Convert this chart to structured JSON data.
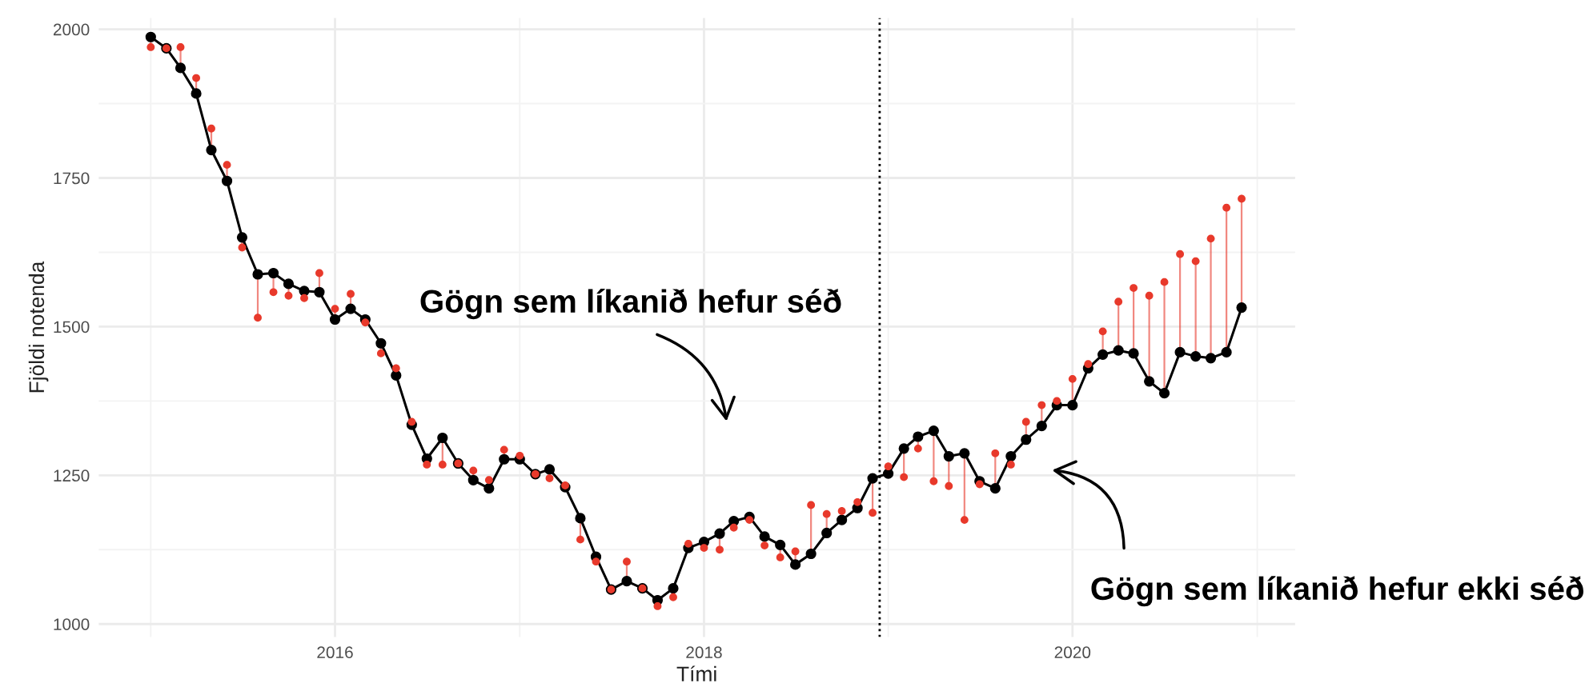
{
  "chart_data": {
    "type": "line",
    "xlabel": "Tími",
    "ylabel": "Fjöldi notenda",
    "x": [
      "2015-01",
      "2015-02",
      "2015-03",
      "2015-04",
      "2015-05",
      "2015-06",
      "2015-07",
      "2015-08",
      "2015-09",
      "2015-10",
      "2015-11",
      "2015-12",
      "2016-01",
      "2016-02",
      "2016-03",
      "2016-04",
      "2016-05",
      "2016-06",
      "2016-07",
      "2016-08",
      "2016-09",
      "2016-10",
      "2016-11",
      "2016-12",
      "2017-01",
      "2017-02",
      "2017-03",
      "2017-04",
      "2017-05",
      "2017-06",
      "2017-07",
      "2017-08",
      "2017-09",
      "2017-10",
      "2017-11",
      "2017-12",
      "2018-01",
      "2018-02",
      "2018-03",
      "2018-04",
      "2018-05",
      "2018-06",
      "2018-07",
      "2018-08",
      "2018-09",
      "2018-10",
      "2018-11",
      "2018-12",
      "2019-01",
      "2019-02",
      "2019-03",
      "2019-04",
      "2019-05",
      "2019-06",
      "2019-07",
      "2019-08",
      "2019-09",
      "2019-10",
      "2019-11",
      "2019-12",
      "2020-01",
      "2020-02",
      "2020-03",
      "2020-04",
      "2020-05",
      "2020-06",
      "2020-07",
      "2020-08",
      "2020-09",
      "2020-10",
      "2020-11",
      "2020-12"
    ],
    "series": [
      {
        "color": "#000000",
        "marker": "circle",
        "line_style": "solid",
        "values": [
          1987,
          1968,
          1935,
          1892,
          1797,
          1745,
          1650,
          1588,
          1590,
          1572,
          1560,
          1558,
          1512,
          1530,
          1512,
          1472,
          1418,
          1335,
          1278,
          1313,
          1270,
          1242,
          1228,
          1277,
          1277,
          1252,
          1260,
          1230,
          1178,
          1113,
          1058,
          1072,
          1060,
          1040,
          1060,
          1128,
          1138,
          1152,
          1173,
          1180,
          1147,
          1133,
          1100,
          1118,
          1153,
          1175,
          1195,
          1245,
          1253,
          1295,
          1315,
          1325,
          1282,
          1287,
          1240,
          1228,
          1282,
          1310,
          1333,
          1368,
          1368,
          1430,
          1453,
          1460,
          1455,
          1408,
          1388,
          1457,
          1450,
          1447,
          1457,
          1532
        ]
      },
      {
        "type": "scatter",
        "color": "#e8392b",
        "marker": "circle",
        "values": [
          1970,
          1968,
          1970,
          1918,
          1833,
          1772,
          1633,
          1515,
          1558,
          1552,
          1548,
          1590,
          1530,
          1555,
          1507,
          1455,
          1430,
          1340,
          1268,
          1268,
          1270,
          1258,
          1242,
          1293,
          1283,
          1252,
          1245,
          1233,
          1142,
          1105,
          1058,
          1105,
          1060,
          1030,
          1045,
          1135,
          1128,
          1125,
          1162,
          1175,
          1132,
          1112,
          1122,
          1200,
          1185,
          1190,
          1205,
          1187,
          1265,
          1247,
          1295,
          1240,
          1232,
          1175,
          1235,
          1287,
          1268,
          1340,
          1368,
          1375,
          1412,
          1437,
          1492,
          1542,
          1565,
          1552,
          1575,
          1622,
          1610,
          1648,
          1700,
          1715
        ]
      }
    ],
    "xlim": [
      "2014-09-20",
      "2021-03-17"
    ],
    "xticks": [
      {
        "value": "2015",
        "label": null
      },
      "2016",
      {
        "value": "2017",
        "label": null
      },
      "2018",
      {
        "value": "2019",
        "label": null
      },
      "2020",
      {
        "value": "2021",
        "label": null
      }
    ],
    "ylim": [
      978,
      2019
    ],
    "yticks": [
      1000,
      {
        "value": 1125,
        "label": null
      },
      1250,
      {
        "value": 1375,
        "label": null
      },
      1500,
      {
        "value": 1625,
        "label": null
      },
      1750,
      {
        "value": 1875,
        "label": null
      },
      2000
    ],
    "grid": true,
    "ref_lines": [
      {
        "axis": "x",
        "value": "2018-12-15",
        "color": "#000000",
        "line_style": "dotted"
      }
    ],
    "annotations": [
      "Gögn sem líkanið hefur séð",
      "Gögn sem líkanið hefur ekki séð"
    ]
  }
}
